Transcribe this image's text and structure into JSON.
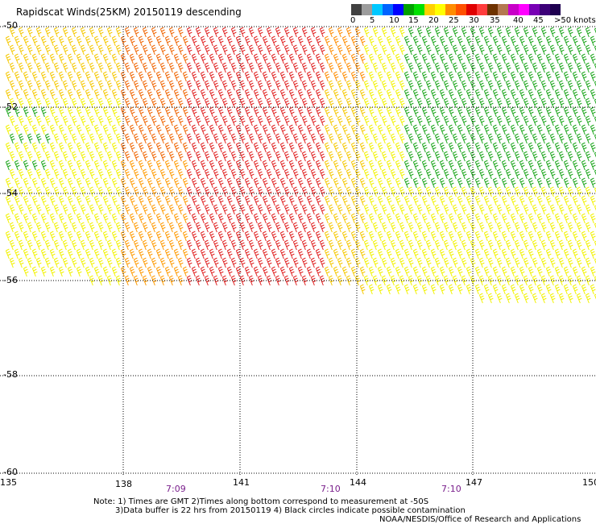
{
  "title": "Rapidscat Winds(25KM) 20150119 descending",
  "legend": {
    "colors": [
      "#404040",
      "#9c9c9c",
      "#00c8ff",
      "#0064ff",
      "#0000ff",
      "#00a000",
      "#00e000",
      "#ffd000",
      "#ffff00",
      "#ff8c00",
      "#ff5000",
      "#e00000",
      "#ff3c3c",
      "#6e3200",
      "#b47850",
      "#c800c8",
      "#ff00ff",
      "#7800b4",
      "#3c0078",
      "#1e0050"
    ],
    "labels": [
      "0",
      "5",
      "10",
      "15",
      "20",
      "25",
      "30",
      "35",
      "40",
      "45",
      ">50 knots"
    ]
  },
  "axes": {
    "lat_labels": [
      "-50",
      "-52",
      "-54",
      "-56",
      "-58",
      "-60"
    ],
    "lon_labels": [
      "135",
      "138",
      "141",
      "144",
      "147",
      "150"
    ]
  },
  "times": [
    "7:09",
    "7:10",
    "7:10"
  ],
  "notes": {
    "line1": "Note: 1) Times are GMT 2)Times along bottom correspond to measurement at -50S",
    "line2": "3)Data buffer is 22 hrs from 20150119 4) Black circles indicate possible contamination",
    "line3": "NOAA/NESDIS/Office of Research and Applications"
  }
}
